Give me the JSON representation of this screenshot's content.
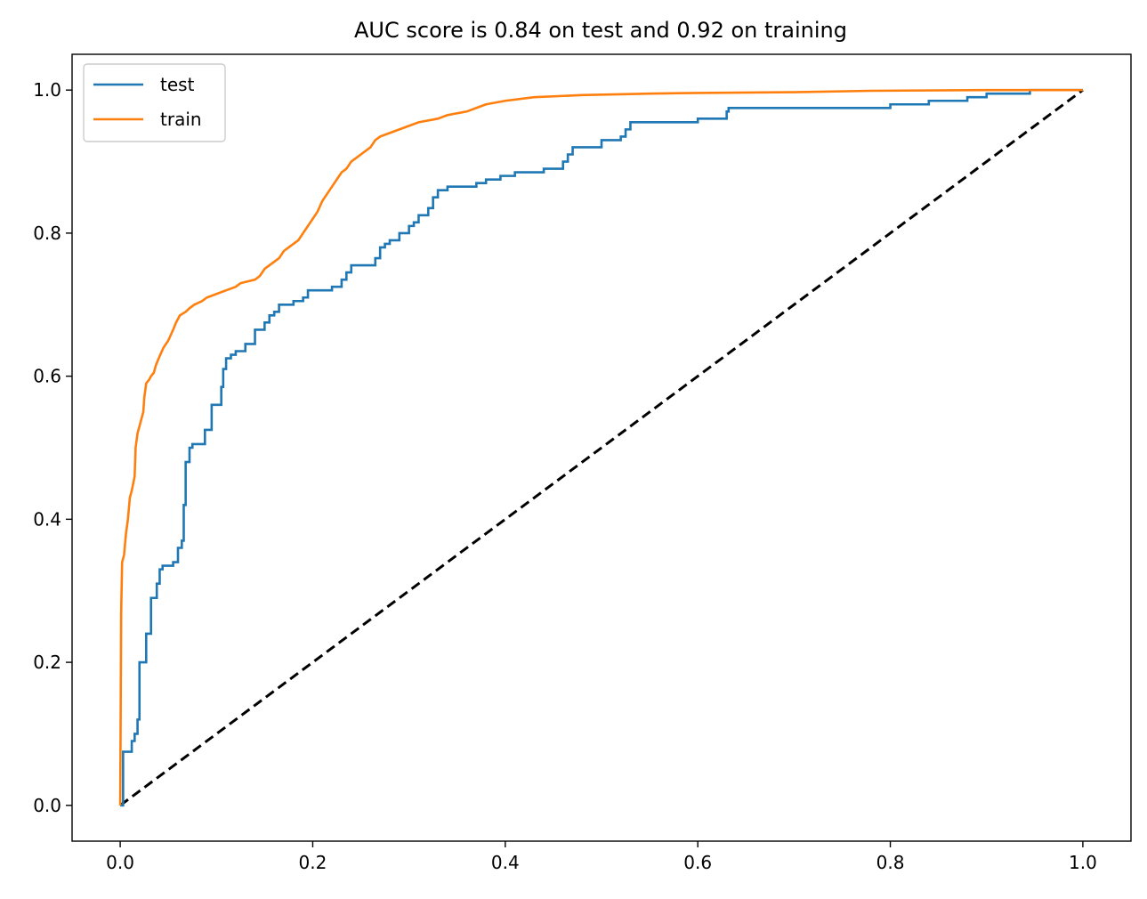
{
  "chart_data": {
    "type": "line",
    "title": "AUC score is 0.84 on test and 0.92 on training",
    "xlabel": "",
    "ylabel": "",
    "xlim": [
      -0.05,
      1.05
    ],
    "ylim": [
      -0.05,
      1.05
    ],
    "xticks": [
      0.0,
      0.2,
      0.4,
      0.6,
      0.8,
      1.0
    ],
    "xtick_labels": [
      "0.0",
      "0.2",
      "0.4",
      "0.6",
      "0.8",
      "1.0"
    ],
    "yticks": [
      0.0,
      0.2,
      0.4,
      0.6,
      0.8,
      1.0
    ],
    "ytick_labels": [
      "0.0",
      "0.2",
      "0.4",
      "0.6",
      "0.8",
      "1.0"
    ],
    "grid": false,
    "legend_position": "upper-left",
    "series": [
      {
        "name": "test",
        "color": "#1f77b4",
        "step": true,
        "points": [
          [
            0.0,
            0.0
          ],
          [
            0.003,
            0.03
          ],
          [
            0.003,
            0.075
          ],
          [
            0.01,
            0.075
          ],
          [
            0.012,
            0.09
          ],
          [
            0.015,
            0.1
          ],
          [
            0.018,
            0.12
          ],
          [
            0.02,
            0.2
          ],
          [
            0.027,
            0.24
          ],
          [
            0.032,
            0.29
          ],
          [
            0.038,
            0.31
          ],
          [
            0.041,
            0.33
          ],
          [
            0.044,
            0.335
          ],
          [
            0.055,
            0.34
          ],
          [
            0.06,
            0.36
          ],
          [
            0.064,
            0.37
          ],
          [
            0.066,
            0.42
          ],
          [
            0.068,
            0.48
          ],
          [
            0.072,
            0.5
          ],
          [
            0.075,
            0.505
          ],
          [
            0.088,
            0.525
          ],
          [
            0.095,
            0.56
          ],
          [
            0.105,
            0.585
          ],
          [
            0.107,
            0.61
          ],
          [
            0.11,
            0.625
          ],
          [
            0.115,
            0.63
          ],
          [
            0.12,
            0.635
          ],
          [
            0.13,
            0.645
          ],
          [
            0.14,
            0.665
          ],
          [
            0.15,
            0.675
          ],
          [
            0.155,
            0.685
          ],
          [
            0.16,
            0.69
          ],
          [
            0.165,
            0.7
          ],
          [
            0.18,
            0.705
          ],
          [
            0.19,
            0.71
          ],
          [
            0.195,
            0.72
          ],
          [
            0.22,
            0.725
          ],
          [
            0.23,
            0.735
          ],
          [
            0.235,
            0.745
          ],
          [
            0.24,
            0.755
          ],
          [
            0.265,
            0.765
          ],
          [
            0.27,
            0.78
          ],
          [
            0.275,
            0.785
          ],
          [
            0.28,
            0.79
          ],
          [
            0.29,
            0.8
          ],
          [
            0.3,
            0.81
          ],
          [
            0.305,
            0.815
          ],
          [
            0.31,
            0.825
          ],
          [
            0.32,
            0.835
          ],
          [
            0.325,
            0.85
          ],
          [
            0.33,
            0.86
          ],
          [
            0.34,
            0.865
          ],
          [
            0.37,
            0.87
          ],
          [
            0.38,
            0.875
          ],
          [
            0.395,
            0.88
          ],
          [
            0.41,
            0.885
          ],
          [
            0.44,
            0.89
          ],
          [
            0.46,
            0.9
          ],
          [
            0.465,
            0.91
          ],
          [
            0.47,
            0.92
          ],
          [
            0.5,
            0.93
          ],
          [
            0.52,
            0.935
          ],
          [
            0.525,
            0.945
          ],
          [
            0.53,
            0.955
          ],
          [
            0.6,
            0.96
          ],
          [
            0.63,
            0.97
          ],
          [
            0.632,
            0.975
          ],
          [
            0.8,
            0.98
          ],
          [
            0.84,
            0.985
          ],
          [
            0.88,
            0.99
          ],
          [
            0.9,
            0.995
          ],
          [
            0.945,
            1.0
          ],
          [
            1.0,
            1.0
          ]
        ]
      },
      {
        "name": "train",
        "color": "#ff7f0e",
        "step": false,
        "points": [
          [
            0.0,
            0.0
          ],
          [
            0.001,
            0.27
          ],
          [
            0.002,
            0.34
          ],
          [
            0.004,
            0.35
          ],
          [
            0.006,
            0.38
          ],
          [
            0.008,
            0.4
          ],
          [
            0.01,
            0.43
          ],
          [
            0.012,
            0.44
          ],
          [
            0.015,
            0.46
          ],
          [
            0.016,
            0.5
          ],
          [
            0.018,
            0.52
          ],
          [
            0.02,
            0.53
          ],
          [
            0.022,
            0.54
          ],
          [
            0.024,
            0.55
          ],
          [
            0.025,
            0.57
          ],
          [
            0.027,
            0.59
          ],
          [
            0.03,
            0.595
          ],
          [
            0.032,
            0.6
          ],
          [
            0.035,
            0.605
          ],
          [
            0.037,
            0.615
          ],
          [
            0.04,
            0.625
          ],
          [
            0.045,
            0.64
          ],
          [
            0.05,
            0.65
          ],
          [
            0.055,
            0.665
          ],
          [
            0.058,
            0.675
          ],
          [
            0.062,
            0.685
          ],
          [
            0.068,
            0.69
          ],
          [
            0.072,
            0.695
          ],
          [
            0.077,
            0.7
          ],
          [
            0.085,
            0.705
          ],
          [
            0.09,
            0.71
          ],
          [
            0.1,
            0.715
          ],
          [
            0.11,
            0.72
          ],
          [
            0.12,
            0.725
          ],
          [
            0.125,
            0.73
          ],
          [
            0.14,
            0.735
          ],
          [
            0.145,
            0.74
          ],
          [
            0.15,
            0.75
          ],
          [
            0.155,
            0.755
          ],
          [
            0.16,
            0.76
          ],
          [
            0.165,
            0.765
          ],
          [
            0.17,
            0.775
          ],
          [
            0.175,
            0.78
          ],
          [
            0.18,
            0.785
          ],
          [
            0.185,
            0.79
          ],
          [
            0.19,
            0.8
          ],
          [
            0.195,
            0.81
          ],
          [
            0.2,
            0.82
          ],
          [
            0.205,
            0.83
          ],
          [
            0.21,
            0.845
          ],
          [
            0.215,
            0.855
          ],
          [
            0.22,
            0.865
          ],
          [
            0.225,
            0.875
          ],
          [
            0.23,
            0.885
          ],
          [
            0.235,
            0.89
          ],
          [
            0.24,
            0.9
          ],
          [
            0.245,
            0.905
          ],
          [
            0.25,
            0.91
          ],
          [
            0.26,
            0.92
          ],
          [
            0.265,
            0.93
          ],
          [
            0.27,
            0.935
          ],
          [
            0.28,
            0.94
          ],
          [
            0.29,
            0.945
          ],
          [
            0.3,
            0.95
          ],
          [
            0.31,
            0.955
          ],
          [
            0.33,
            0.96
          ],
          [
            0.34,
            0.965
          ],
          [
            0.36,
            0.97
          ],
          [
            0.37,
            0.975
          ],
          [
            0.38,
            0.98
          ],
          [
            0.4,
            0.985
          ],
          [
            0.43,
            0.99
          ],
          [
            0.48,
            0.993
          ],
          [
            0.55,
            0.995
          ],
          [
            0.6,
            0.996
          ],
          [
            0.7,
            0.997
          ],
          [
            0.78,
            0.999
          ],
          [
            0.9,
            1.0
          ],
          [
            1.0,
            1.0
          ]
        ]
      }
    ],
    "reference_line": {
      "color": "#000000",
      "style": "dashed",
      "points": [
        [
          0.0,
          0.0
        ],
        [
          1.0,
          1.0
        ]
      ]
    }
  }
}
